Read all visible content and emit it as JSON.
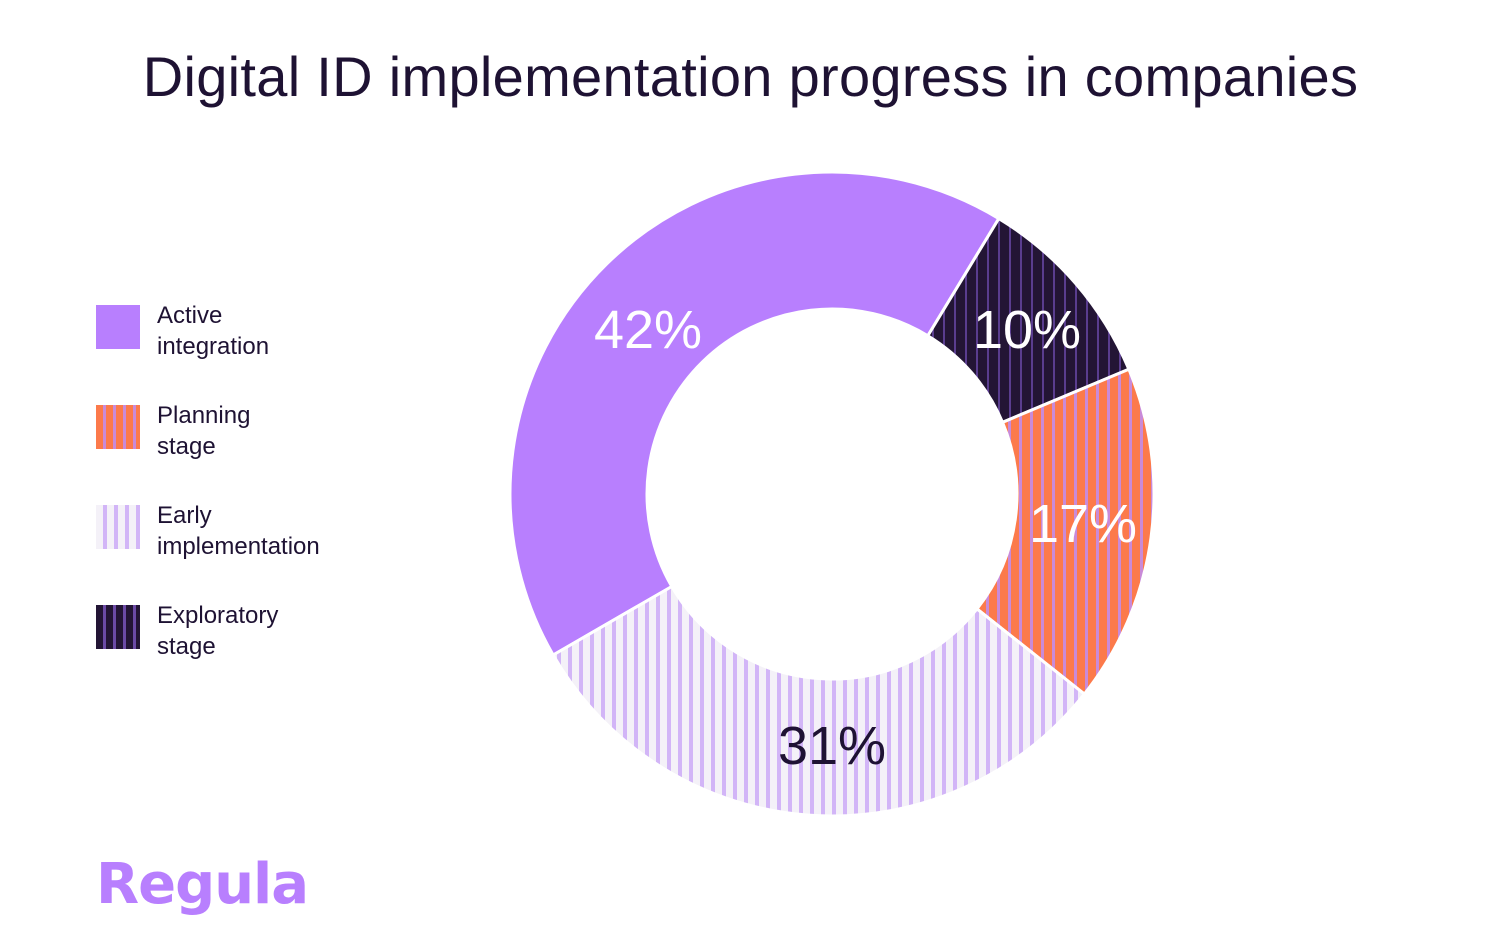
{
  "title": "Digital ID implementation progress in companies",
  "legend": [
    {
      "line1": "Active",
      "line2": "integration"
    },
    {
      "line1": "Planning",
      "line2": "stage"
    },
    {
      "line1": "Early",
      "line2": "implementation"
    },
    {
      "line1": "Exploratory",
      "line2": "stage"
    }
  ],
  "labels": {
    "active": "42%",
    "exploratory": "10%",
    "planning": "17%",
    "early": "31%"
  },
  "brand": {
    "logo": "Regula",
    "color": "#b87ffe"
  },
  "colors": {
    "active": "#b87ffe",
    "planning": "#fc7a4b",
    "early": "#d2b5f7",
    "exploratory": "#231535",
    "text": "#1e1233"
  },
  "chart_data": {
    "type": "pie",
    "variant": "donut",
    "title": "Digital ID implementation progress in companies",
    "categories": [
      "Active integration",
      "Exploratory stage",
      "Planning stage",
      "Early implementation"
    ],
    "values": [
      42,
      10,
      17,
      31
    ],
    "unit": "%",
    "legend_position": "left",
    "legend_order": [
      "Active integration",
      "Planning stage",
      "Early implementation",
      "Exploratory stage"
    ]
  }
}
